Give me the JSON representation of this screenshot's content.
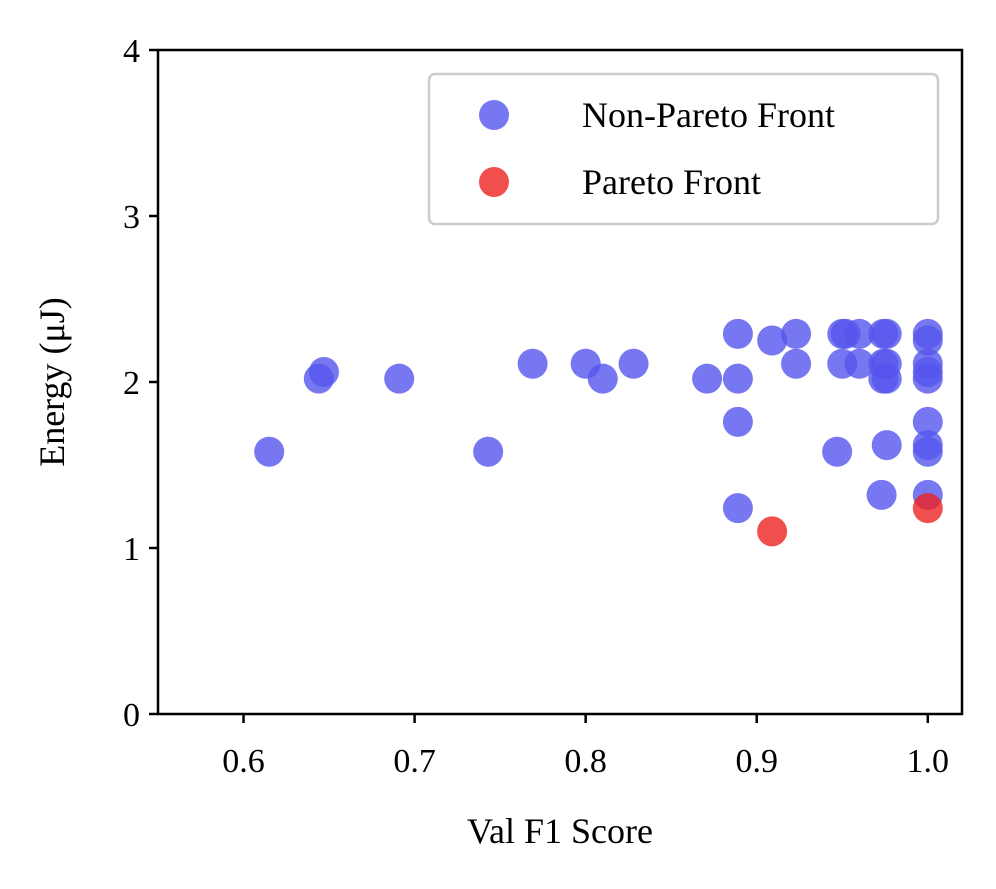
{
  "chart_data": {
    "type": "scatter",
    "xlabel": "Val F1 Score",
    "ylabel": "Energy (μJ)",
    "xlim": [
      0.55,
      1.02
    ],
    "ylim": [
      0,
      4
    ],
    "xticks": [
      0.6,
      0.7,
      0.8,
      0.9,
      1.0
    ],
    "xtick_labels": [
      "0.6",
      "0.7",
      "0.8",
      "0.9",
      "1.0"
    ],
    "yticks": [
      0,
      1,
      2,
      3,
      4
    ],
    "ytick_labels": [
      "0",
      "1",
      "2",
      "3",
      "4"
    ],
    "grid": false,
    "legend_position": "top-right",
    "series": [
      {
        "name": "Non-Pareto Front",
        "color": "#5555ee",
        "points": [
          [
            0.615,
            1.58
          ],
          [
            0.644,
            2.02
          ],
          [
            0.647,
            2.06
          ],
          [
            0.691,
            2.02
          ],
          [
            0.743,
            1.58
          ],
          [
            0.769,
            2.11
          ],
          [
            0.8,
            2.11
          ],
          [
            0.81,
            2.02
          ],
          [
            0.828,
            2.11
          ],
          [
            0.871,
            2.02
          ],
          [
            0.889,
            2.29
          ],
          [
            0.889,
            2.02
          ],
          [
            0.889,
            1.76
          ],
          [
            0.889,
            1.24
          ],
          [
            0.909,
            2.25
          ],
          [
            0.923,
            2.29
          ],
          [
            0.923,
            2.11
          ],
          [
            0.947,
            1.58
          ],
          [
            0.95,
            2.29
          ],
          [
            0.952,
            2.29
          ],
          [
            0.95,
            2.11
          ],
          [
            0.96,
            2.29
          ],
          [
            0.96,
            2.11
          ],
          [
            0.974,
            2.29
          ],
          [
            0.976,
            2.29
          ],
          [
            0.974,
            2.11
          ],
          [
            0.976,
            2.11
          ],
          [
            0.974,
            2.02
          ],
          [
            0.976,
            2.02
          ],
          [
            0.976,
            1.62
          ],
          [
            0.973,
            1.32
          ],
          [
            1.0,
            2.29
          ],
          [
            1.0,
            2.25
          ],
          [
            1.0,
            2.11
          ],
          [
            1.0,
            2.06
          ],
          [
            1.0,
            2.02
          ],
          [
            1.0,
            1.76
          ],
          [
            1.0,
            1.62
          ],
          [
            1.0,
            1.58
          ],
          [
            1.0,
            1.32
          ]
        ]
      },
      {
        "name": "Pareto Front",
        "color": "#ee2222",
        "points": [
          [
            0.909,
            1.1
          ],
          [
            1.0,
            1.24
          ]
        ]
      }
    ]
  }
}
